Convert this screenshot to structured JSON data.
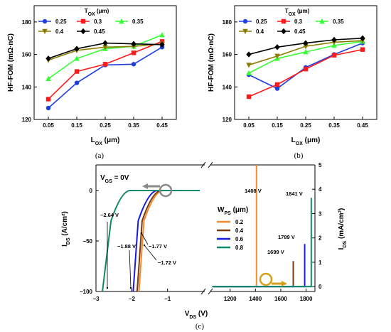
{
  "panels": {
    "a": {
      "caption": "(a)"
    },
    "b": {
      "caption": "(b)"
    },
    "c": {
      "caption": "(c)"
    }
  },
  "chart_data": [
    {
      "id": "a",
      "type": "line",
      "xlabel": "L_OX (μm)",
      "ylabel": "HF-FOM (mΩ·nC)",
      "x": [
        0.05,
        0.15,
        0.25,
        0.35,
        0.45
      ],
      "xlim": [
        0,
        0.5
      ],
      "ylim": [
        120,
        190
      ],
      "yticks": [
        120,
        140,
        160,
        180
      ],
      "legend_title": "T_OX (μm)",
      "series": [
        {
          "name": "0.25",
          "color": "#1f3fe0",
          "marker": "circle",
          "values": [
            127,
            142.5,
            153.5,
            154,
            164.5
          ]
        },
        {
          "name": "0.3",
          "color": "#ff1a1a",
          "marker": "square",
          "values": [
            132.5,
            149.5,
            154,
            161,
            168
          ]
        },
        {
          "name": "0.35",
          "color": "#33ff33",
          "marker": "triangle",
          "values": [
            145,
            157.5,
            163.5,
            165,
            172
          ]
        },
        {
          "name": "0.4",
          "color": "#8a7d00",
          "marker": "triangle-down",
          "values": [
            156.5,
            162.5,
            164.5,
            165,
            166.5
          ]
        },
        {
          "name": "0.45",
          "color": "#000000",
          "marker": "diamond",
          "values": [
            157.5,
            163.5,
            167,
            166.5,
            166
          ]
        }
      ]
    },
    {
      "id": "b",
      "type": "line",
      "xlabel": "L_OX (μm)",
      "ylabel": "HF-FOM (mΩ·nC)",
      "x": [
        0.05,
        0.15,
        0.25,
        0.35,
        0.45
      ],
      "xlim": [
        0,
        0.5
      ],
      "ylim": [
        120,
        190
      ],
      "yticks": [
        120,
        140,
        160,
        180
      ],
      "legend_title": "T_OX (μm)",
      "series": [
        {
          "name": "0.25",
          "color": "#1f3fe0",
          "marker": "circle",
          "values": [
            147.5,
            139,
            152,
            160,
            167
          ]
        },
        {
          "name": "0.3",
          "color": "#ff1a1a",
          "marker": "square",
          "values": [
            134,
            141.5,
            151,
            159.5,
            163
          ]
        },
        {
          "name": "0.35",
          "color": "#33ff33",
          "marker": "triangle",
          "values": [
            148.5,
            157.5,
            161.5,
            165.5,
            168
          ]
        },
        {
          "name": "0.4",
          "color": "#8a7d00",
          "marker": "triangle-down",
          "values": [
            153.5,
            159,
            165,
            167.5,
            168.5
          ]
        },
        {
          "name": "0.45",
          "color": "#000000",
          "marker": "diamond",
          "values": [
            160,
            164.5,
            167,
            169,
            170
          ]
        }
      ]
    },
    {
      "id": "c",
      "type": "line",
      "xlabel": "V_DS (V)",
      "ylabel_left": "I_DS (A/cm²)",
      "ylabel_right": "I_DS (mA/cm²)",
      "left_xlim": [
        -3,
        0
      ],
      "left_xticks": [
        -3,
        -2,
        -1
      ],
      "left_ylim": [
        -100,
        0
      ],
      "left_yticks": [
        0,
        -50,
        -100
      ],
      "right_xlim": [
        1050,
        1870
      ],
      "right_xticks": [
        1200,
        1400,
        1600,
        1800
      ],
      "right_ylim": [
        -0.2,
        5
      ],
      "right_yticks": [
        0,
        1,
        2,
        3,
        4,
        5
      ],
      "legend_title": "W_PS (μm)",
      "vgs_label": "V_GS = 0V",
      "series": [
        {
          "name": "0.2",
          "color": "#f28a2e",
          "reverse_threshold": -1.72,
          "breakdown_voltage": 1408
        },
        {
          "name": "0.4",
          "color": "#7a3b12",
          "reverse_threshold": -1.77,
          "breakdown_voltage": 1699
        },
        {
          "name": "0.6",
          "color": "#1a1ae6",
          "reverse_threshold": -1.88,
          "breakdown_voltage": 1789
        },
        {
          "name": "0.8",
          "color": "#0f8a6a",
          "reverse_threshold": -2.64,
          "breakdown_voltage": 1841
        }
      ],
      "annotations": [
        "−2.64 V",
        "−1.88 V",
        "−1.77 V",
        "−1.72 V",
        "1408 V",
        "1699 V",
        "1789 V",
        "1841 V"
      ]
    }
  ]
}
